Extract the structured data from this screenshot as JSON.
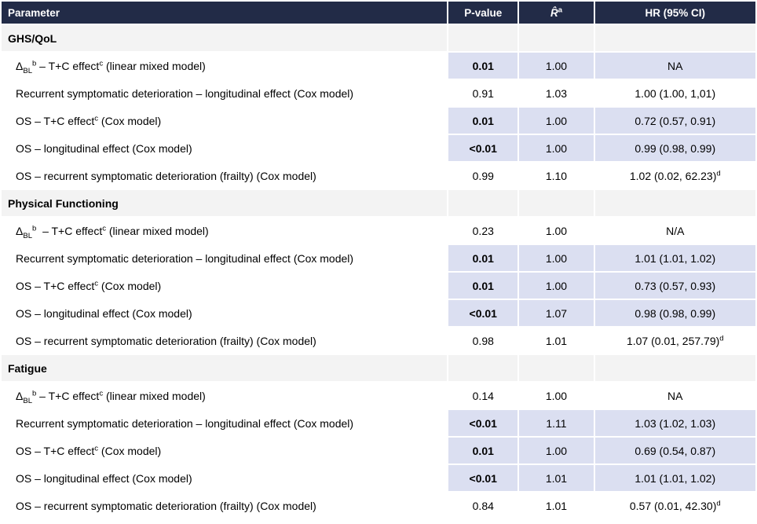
{
  "colors": {
    "header-bg": "#222b47",
    "header-text": "#ffffff",
    "highlight": "#dbdff1",
    "section-bg": "#f3f3f3",
    "text": "#000000",
    "page-bg": "#ffffff"
  },
  "table": {
    "header": {
      "parameter": "Parameter",
      "p_value": "P-value",
      "r_hat_html": "<i>R̂</i><sup>a</sup>",
      "hr": "HR (95% CI)"
    },
    "sections": [
      {
        "name": "GHS/QoL",
        "rows": [
          {
            "label_html": "Δ<sub>BL</sub><sup>b</sup> – T+C effect<sup>c</sup> (linear mixed model)",
            "p": "0.01",
            "r": "1.00",
            "hr_html": "NA",
            "highlight": true
          },
          {
            "label_html": "Recurrent symptomatic deterioration – longitudinal effect (Cox model)",
            "p": "0.91",
            "r": "1.03",
            "hr_html": "1.00 (1.00, 1,01)",
            "highlight": false
          },
          {
            "label_html": "OS – T+C effect<sup>c</sup> (Cox model)",
            "p": "0.01",
            "r": "1.00",
            "hr_html": "0.72 (0.57, 0.91)",
            "highlight": true
          },
          {
            "label_html": "OS – longitudinal effect (Cox model)",
            "p": "<0.01",
            "r": "1.00",
            "hr_html": "0.99 (0.98, 0.99)",
            "highlight": true
          },
          {
            "label_html": "OS – recurrent symptomatic deterioration (frailty) (Cox model)",
            "p": "0.99",
            "r": "1.10",
            "hr_html": "1.02 (0.02, 62.23)<sup>d</sup>",
            "highlight": false
          }
        ]
      },
      {
        "name": "Physical Functioning",
        "rows": [
          {
            "label_html": "Δ<sub>BL</sub><sup>b</sup>&nbsp; – T+C effect<sup>c</sup> (linear mixed model)",
            "p": "0.23",
            "r": "1.00",
            "hr_html": "N/A",
            "highlight": false
          },
          {
            "label_html": "Recurrent symptomatic deterioration – longitudinal effect (Cox model)",
            "p": "0.01",
            "r": "1.00",
            "hr_html": "1.01 (1.01, 1.02)",
            "highlight": true
          },
          {
            "label_html": "OS – T+C effect<sup>c</sup> (Cox model)",
            "p": "0.01",
            "r": "1.00",
            "hr_html": "0.73 (0.57, 0.93)",
            "highlight": true
          },
          {
            "label_html": "OS – longitudinal effect (Cox model)",
            "p": "<0.01",
            "r": "1.07",
            "hr_html": "0.98 (0.98, 0.99)",
            "highlight": true
          },
          {
            "label_html": "OS – recurrent symptomatic deterioration (frailty) (Cox model)",
            "p": "0.98",
            "r": "1.01",
            "hr_html": "1.07 (0.01, 257.79)<sup>d</sup>",
            "highlight": false
          }
        ]
      },
      {
        "name": "Fatigue",
        "rows": [
          {
            "label_html": "Δ<sub>BL</sub><sup>b</sup> – T+C effect<sup>c</sup> (linear mixed model)",
            "p": "0.14",
            "r": "1.00",
            "hr_html": "NA",
            "highlight": false
          },
          {
            "label_html": "Recurrent symptomatic deterioration – longitudinal effect (Cox model)",
            "p": "<0.01",
            "r": "1.11",
            "hr_html": "1.03 (1.02, 1.03)",
            "highlight": true
          },
          {
            "label_html": "OS – T+C effect<sup>c</sup> (Cox model)",
            "p": "0.01",
            "r": "1.00",
            "hr_html": "0.69 (0.54, 0.87)",
            "highlight": true
          },
          {
            "label_html": "OS – longitudinal effect (Cox model)",
            "p": "<0.01",
            "r": "1.01",
            "hr_html": "1.01 (1.01, 1.02)",
            "highlight": true
          },
          {
            "label_html": "OS – recurrent symptomatic deterioration (frailty) (Cox model)",
            "p": "0.84",
            "r": "1.01",
            "hr_html": "0.57 (0.01, 42.30)<sup>d</sup>",
            "highlight": false
          }
        ]
      }
    ]
  }
}
